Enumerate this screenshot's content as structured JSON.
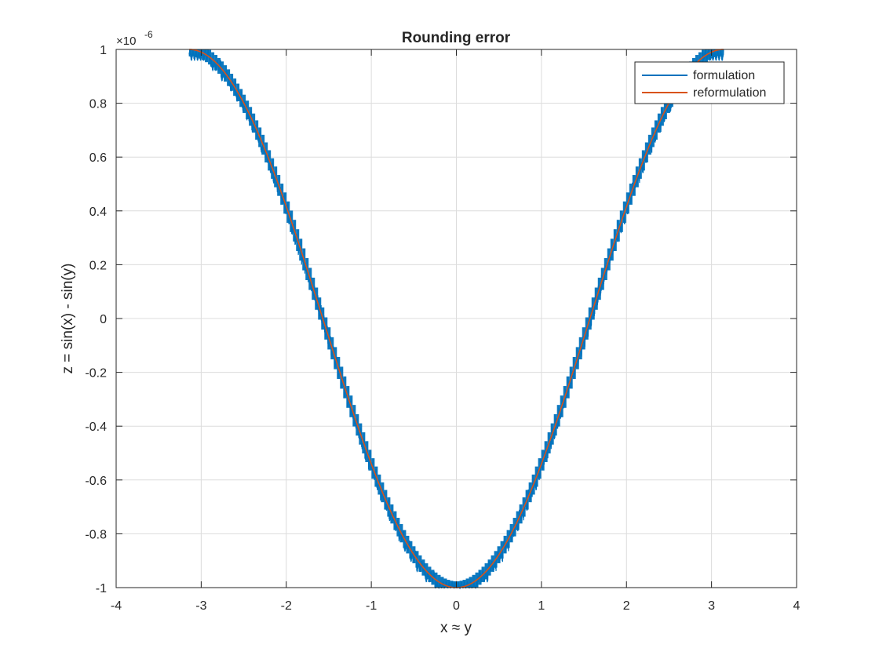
{
  "chart_data": {
    "type": "line",
    "title": "Rounding error",
    "xlabel": "x ≈ y",
    "ylabel": "z = sin(x) - sin(y)",
    "y_exponent_label_base": "×10",
    "y_exponent": "-6",
    "xlim": [
      -4,
      4
    ],
    "ylim": [
      -1e-06,
      1e-06
    ],
    "x_ticks": [
      -4,
      -3,
      -2,
      -1,
      0,
      1,
      2,
      3,
      4
    ],
    "x_tick_labels": [
      "-4",
      "-3",
      "-2",
      "-1",
      "0",
      "1",
      "2",
      "3",
      "4"
    ],
    "y_ticks": [
      -1,
      -0.8,
      -0.6,
      -0.4,
      -0.2,
      0,
      0.2,
      0.4,
      0.6,
      0.8,
      1
    ],
    "y_tick_labels": [
      "-1",
      "-0.8",
      "-0.6",
      "-0.4",
      "-0.2",
      "0",
      "0.2",
      "0.4",
      "0.6",
      "0.8",
      "1"
    ],
    "grid": true,
    "legend_position": "top-right",
    "x_range": [
      -3.14159,
      3.14159
    ],
    "series": [
      {
        "name": "formulation",
        "color": "#0072BD",
        "function": "-cos(x) * 1e-6 with floating-point rounding steps of about 0.038e-6",
        "x": [
          -3.14,
          -3.0,
          -2.8,
          -2.6,
          -2.4,
          -2.2,
          -2.0,
          -1.8,
          -1.6,
          -1.4,
          -1.2,
          -1.0,
          -0.8,
          -0.6,
          -0.4,
          -0.2,
          0,
          0.2,
          0.4,
          0.6,
          0.8,
          1.0,
          1.2,
          1.4,
          1.6,
          1.8,
          2.0,
          2.2,
          2.4,
          2.6,
          2.8,
          3.0,
          3.14
        ],
        "y": [
          9.5e-07,
          9.5e-07,
          9.1e-07,
          8.4e-07,
          7.2e-07,
          5.7e-07,
          4e-07,
          2.2e-07,
          3e-08,
          -1.6e-07,
          -3.4e-07,
          -5e-07,
          -6.6e-07,
          -7.8e-07,
          -8.8e-07,
          -9.5e-07,
          -1e-06,
          -9.5e-07,
          -8.8e-07,
          -7.8e-07,
          -6.6e-07,
          -5e-07,
          -3.4e-07,
          -1.6e-07,
          3e-08,
          2.2e-07,
          4e-07,
          5.7e-07,
          7.2e-07,
          8.4e-07,
          9.1e-07,
          9.5e-07,
          9.5e-07
        ]
      },
      {
        "name": "reformulation",
        "color": "#D95319",
        "function": "-cos(x) * 1e-6 (smooth)",
        "x": [
          -3.14,
          -3.0,
          -2.8,
          -2.6,
          -2.4,
          -2.2,
          -2.0,
          -1.8,
          -1.6,
          -1.4,
          -1.2,
          -1.0,
          -0.8,
          -0.6,
          -0.4,
          -0.2,
          0,
          0.2,
          0.4,
          0.6,
          0.8,
          1.0,
          1.2,
          1.4,
          1.6,
          1.8,
          2.0,
          2.2,
          2.4,
          2.6,
          2.8,
          3.0,
          3.14
        ],
        "y": [
          9.5e-07,
          9.5e-07,
          9.1e-07,
          8.4e-07,
          7.2e-07,
          5.7e-07,
          4e-07,
          2.2e-07,
          3e-08,
          -1.6e-07,
          -3.4e-07,
          -5e-07,
          -6.6e-07,
          -7.8e-07,
          -8.8e-07,
          -9.5e-07,
          -1e-06,
          -9.5e-07,
          -8.8e-07,
          -7.8e-07,
          -6.6e-07,
          -5e-07,
          -3.4e-07,
          -1.6e-07,
          3e-08,
          2.2e-07,
          4e-07,
          5.7e-07,
          7.2e-07,
          8.4e-07,
          9.1e-07,
          9.5e-07,
          9.5e-07
        ]
      }
    ]
  }
}
